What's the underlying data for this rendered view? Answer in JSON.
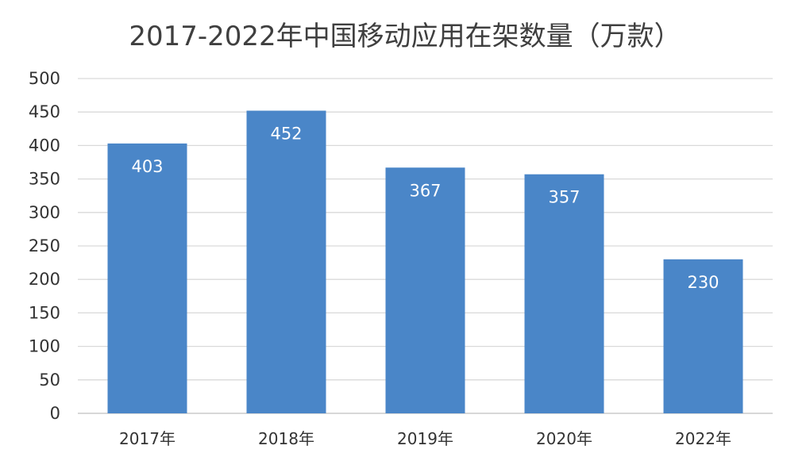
{
  "chart_data": {
    "type": "bar",
    "title": "2017-2022年中国移动应用在架数量（万款）",
    "categories": [
      "2017年",
      "2018年",
      "2019年",
      "2020年",
      "2022年"
    ],
    "values": [
      403,
      452,
      367,
      357,
      230
    ],
    "xlabel": "",
    "ylabel": "",
    "ylim": [
      0,
      500
    ],
    "yticks": [
      0,
      50,
      100,
      150,
      200,
      250,
      300,
      350,
      400,
      450,
      500
    ],
    "grid": true,
    "legend": "none",
    "data_labels": true,
    "colors": {
      "bar": "#4a86c8",
      "grid": "#d9d9d9",
      "axis": "#bfbfbf",
      "text": "#333333",
      "label": "#ffffff",
      "title": "#3f3f3f"
    }
  }
}
